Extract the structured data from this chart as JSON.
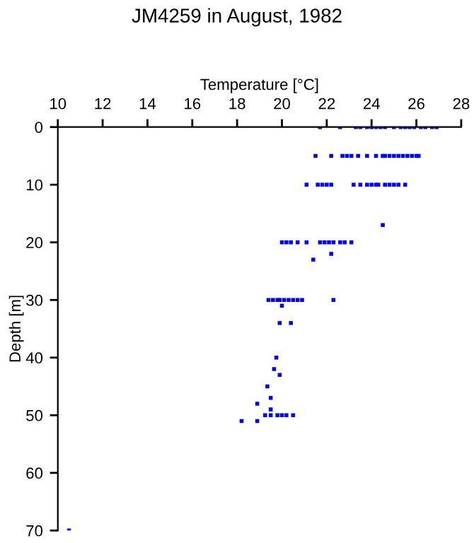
{
  "chart_data": {
    "type": "scatter",
    "title": "JM4259 in August, 1982",
    "xlabel": "Temperature [°C]",
    "ylabel": "Depth [m]",
    "xlim": [
      10,
      28
    ],
    "xticks": [
      10,
      12,
      14,
      16,
      18,
      20,
      22,
      24,
      26,
      28
    ],
    "ylim": [
      70,
      0
    ],
    "yticks": [
      0,
      10,
      20,
      30,
      40,
      50,
      60,
      70
    ],
    "marker": "square",
    "grid": false,
    "series": [
      {
        "color": "#0000ff",
        "x": [
          21.7,
          22.6,
          23.3,
          23.5,
          23.8,
          24.0,
          24.2,
          24.4,
          24.6,
          25.0,
          25.3,
          25.5,
          25.7,
          25.9,
          26.2,
          26.4,
          26.7,
          26.9,
          21.5,
          22.2,
          22.7,
          22.9,
          23.1,
          23.4,
          23.8,
          24.2,
          24.5,
          24.6,
          24.8,
          25.0,
          25.2,
          25.4,
          25.6,
          25.8,
          26.0,
          26.1,
          21.1,
          21.6,
          21.8,
          22.0,
          22.2,
          23.2,
          23.5,
          23.8,
          24.0,
          24.2,
          24.3,
          24.6,
          24.8,
          25.0,
          25.2,
          25.5,
          24.5,
          20.0,
          20.2,
          20.4,
          20.7,
          21.1,
          21.7,
          21.9,
          22.1,
          22.3,
          22.6,
          22.8,
          23.1,
          22.2,
          21.4,
          19.4,
          19.6,
          19.8,
          19.9,
          20.1,
          20.3,
          20.5,
          20.7,
          20.9,
          22.3,
          20.0,
          19.9,
          20.4,
          19.75,
          19.65,
          19.9,
          19.35,
          19.5,
          18.9,
          19.5,
          19.25,
          19.5,
          19.8,
          20.0,
          20.2,
          20.5,
          18.2,
          18.9,
          10.5
        ],
        "values": [
          0,
          0,
          0,
          0,
          0,
          0,
          0,
          0,
          0,
          0,
          0,
          0,
          0,
          0,
          0,
          0,
          0,
          0,
          5,
          5,
          5,
          5,
          5,
          5,
          5,
          5,
          5,
          5,
          5,
          5,
          5,
          5,
          5,
          5,
          5,
          5,
          10,
          10,
          10,
          10,
          10,
          10,
          10,
          10,
          10,
          10,
          10,
          10,
          10,
          10,
          10,
          10,
          17,
          20,
          20,
          20,
          20,
          20,
          20,
          20,
          20,
          20,
          20,
          20,
          20,
          22,
          23,
          30,
          30,
          30,
          30,
          30,
          30,
          30,
          30,
          30,
          30,
          31,
          34,
          34,
          40,
          42,
          43,
          45,
          47,
          48,
          49,
          50,
          50,
          50,
          50,
          50,
          50,
          51,
          51,
          70
        ]
      }
    ]
  }
}
